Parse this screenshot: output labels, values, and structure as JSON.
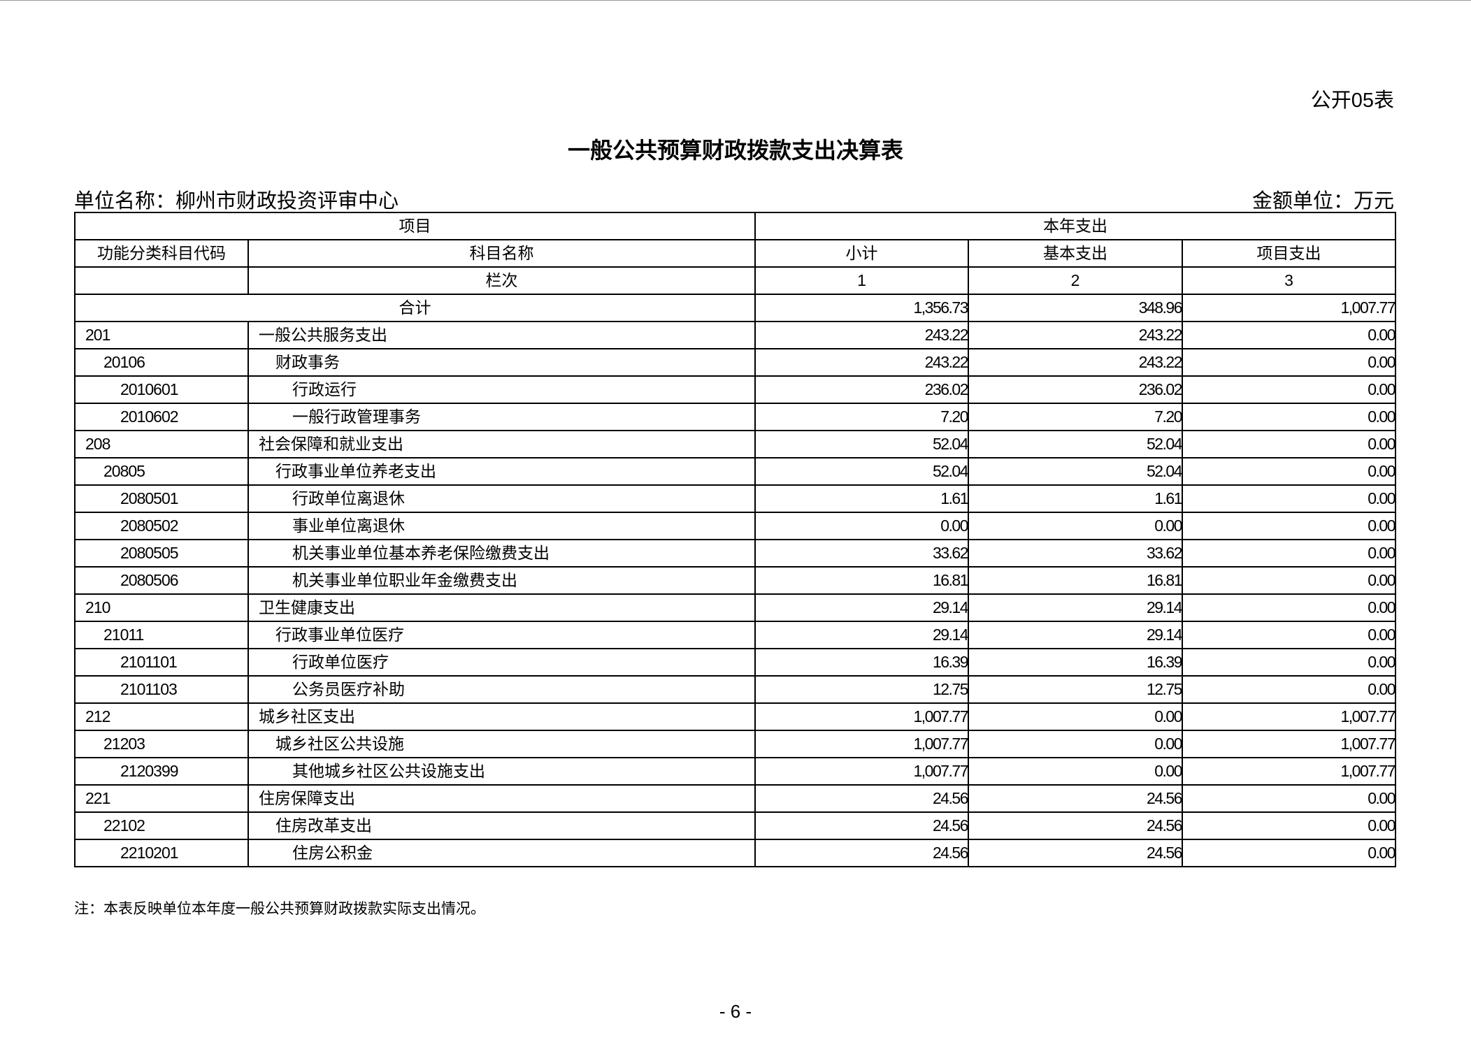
{
  "form_no": "公开05表",
  "title": "一般公共预算财政拨款支出决算表",
  "unit_name": "单位名称：柳州市财政投资评审中心",
  "amount_unit": "金额单位：万元",
  "headers": {
    "item": "项目",
    "current_year": "本年支出",
    "code": "功能分类科目代码",
    "name": "科目名称",
    "subtotal": "小计",
    "basic": "基本支出",
    "project": "项目支出",
    "column_no": "栏次",
    "col1": "1",
    "col2": "2",
    "col3": "3"
  },
  "total": {
    "label": "合计",
    "subtotal": "1,356.73",
    "basic": "348.96",
    "project": "1,007.77"
  },
  "rows": [
    {
      "code": "201",
      "name": "一般公共服务支出",
      "level": 0,
      "subtotal": "243.22",
      "basic": "243.22",
      "project": "0.00"
    },
    {
      "code": "20106",
      "name": "财政事务",
      "level": 1,
      "subtotal": "243.22",
      "basic": "243.22",
      "project": "0.00"
    },
    {
      "code": "2010601",
      "name": "行政运行",
      "level": 2,
      "subtotal": "236.02",
      "basic": "236.02",
      "project": "0.00"
    },
    {
      "code": "2010602",
      "name": "一般行政管理事务",
      "level": 2,
      "subtotal": "7.20",
      "basic": "7.20",
      "project": "0.00"
    },
    {
      "code": "208",
      "name": "社会保障和就业支出",
      "level": 0,
      "subtotal": "52.04",
      "basic": "52.04",
      "project": "0.00"
    },
    {
      "code": "20805",
      "name": "行政事业单位养老支出",
      "level": 1,
      "subtotal": "52.04",
      "basic": "52.04",
      "project": "0.00"
    },
    {
      "code": "2080501",
      "name": "行政单位离退休",
      "level": 2,
      "subtotal": "1.61",
      "basic": "1.61",
      "project": "0.00"
    },
    {
      "code": "2080502",
      "name": "事业单位离退休",
      "level": 2,
      "subtotal": "0.00",
      "basic": "0.00",
      "project": "0.00"
    },
    {
      "code": "2080505",
      "name": "机关事业单位基本养老保险缴费支出",
      "level": 2,
      "subtotal": "33.62",
      "basic": "33.62",
      "project": "0.00"
    },
    {
      "code": "2080506",
      "name": "机关事业单位职业年金缴费支出",
      "level": 2,
      "subtotal": "16.81",
      "basic": "16.81",
      "project": "0.00"
    },
    {
      "code": "210",
      "name": "卫生健康支出",
      "level": 0,
      "subtotal": "29.14",
      "basic": "29.14",
      "project": "0.00"
    },
    {
      "code": "21011",
      "name": "行政事业单位医疗",
      "level": 1,
      "subtotal": "29.14",
      "basic": "29.14",
      "project": "0.00"
    },
    {
      "code": "2101101",
      "name": "行政单位医疗",
      "level": 2,
      "subtotal": "16.39",
      "basic": "16.39",
      "project": "0.00"
    },
    {
      "code": "2101103",
      "name": "公务员医疗补助",
      "level": 2,
      "subtotal": "12.75",
      "basic": "12.75",
      "project": "0.00"
    },
    {
      "code": "212",
      "name": "城乡社区支出",
      "level": 0,
      "subtotal": "1,007.77",
      "basic": "0.00",
      "project": "1,007.77"
    },
    {
      "code": "21203",
      "name": "城乡社区公共设施",
      "level": 1,
      "subtotal": "1,007.77",
      "basic": "0.00",
      "project": "1,007.77"
    },
    {
      "code": "2120399",
      "name": "其他城乡社区公共设施支出",
      "level": 2,
      "subtotal": "1,007.77",
      "basic": "0.00",
      "project": "1,007.77"
    },
    {
      "code": "221",
      "name": "住房保障支出",
      "level": 0,
      "subtotal": "24.56",
      "basic": "24.56",
      "project": "0.00"
    },
    {
      "code": "22102",
      "name": "住房改革支出",
      "level": 1,
      "subtotal": "24.56",
      "basic": "24.56",
      "project": "0.00"
    },
    {
      "code": "2210201",
      "name": "住房公积金",
      "level": 2,
      "subtotal": "24.56",
      "basic": "24.56",
      "project": "0.00"
    }
  ],
  "note": "注：本表反映单位本年度一般公共预算财政拨款实际支出情况。",
  "page_number": "- 6 -"
}
